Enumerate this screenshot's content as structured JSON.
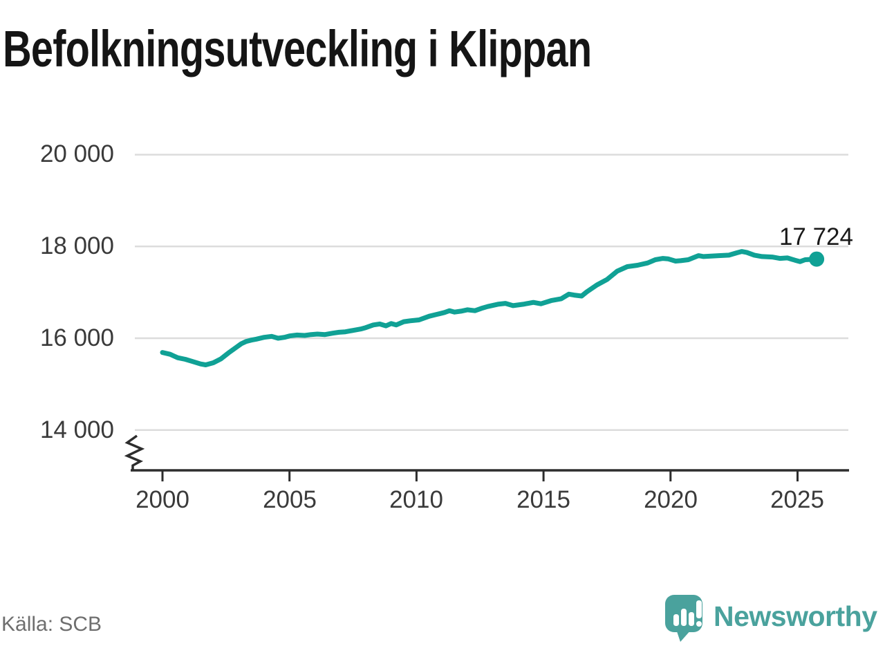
{
  "header": {
    "title": "Befolkningsutveckling i Klippan"
  },
  "footer": {
    "source": "Källa: SCB",
    "logo_text": "Newsworthy"
  },
  "colors": {
    "line": "#10a195",
    "marker": "#10a195",
    "grid": "#dcdcdc",
    "axis": "#2d2d2d",
    "tick_label": "#3a3a3a",
    "title": "#151515",
    "annotation": "#1a1a1a",
    "source": "#6e6e6e",
    "logo": "#4aa29d"
  },
  "chart_data": {
    "type": "line",
    "title": "Befolkningsutveckling i Klippan",
    "xlabel": "",
    "ylabel": "",
    "x_range_years": [
      2000,
      2025.75
    ],
    "ylim": [
      13600,
      20400
    ],
    "grid": "horizontal",
    "axis_break_bottom_left": true,
    "x_ticks": [
      {
        "year": 2000,
        "label": "2000"
      },
      {
        "year": 2005,
        "label": "2005"
      },
      {
        "year": 2010,
        "label": "2010"
      },
      {
        "year": 2015,
        "label": "2015"
      },
      {
        "year": 2020,
        "label": "2020"
      },
      {
        "year": 2025,
        "label": "2025"
      }
    ],
    "y_ticks": [
      {
        "value": 20000,
        "label": "20 000"
      },
      {
        "value": 18000,
        "label": "18 000"
      },
      {
        "value": 16000,
        "label": "16 000"
      },
      {
        "value": 14000,
        "label": "14 000"
      }
    ],
    "annotation": {
      "text": "17 724",
      "value": 17724,
      "year": 2025.75
    },
    "series": [
      {
        "name": "population",
        "points": [
          [
            2000.0,
            15690
          ],
          [
            2000.3,
            15650
          ],
          [
            2000.6,
            15575
          ],
          [
            2000.9,
            15540
          ],
          [
            2001.2,
            15490
          ],
          [
            2001.5,
            15440
          ],
          [
            2001.7,
            15420
          ],
          [
            2002.0,
            15465
          ],
          [
            2002.3,
            15550
          ],
          [
            2002.6,
            15680
          ],
          [
            2002.9,
            15800
          ],
          [
            2003.1,
            15880
          ],
          [
            2003.3,
            15930
          ],
          [
            2003.5,
            15960
          ],
          [
            2003.7,
            15980
          ],
          [
            2004.0,
            16020
          ],
          [
            2004.3,
            16040
          ],
          [
            2004.55,
            16000
          ],
          [
            2004.8,
            16020
          ],
          [
            2005.0,
            16050
          ],
          [
            2005.3,
            16070
          ],
          [
            2005.6,
            16060
          ],
          [
            2005.85,
            16080
          ],
          [
            2006.1,
            16090
          ],
          [
            2006.4,
            16080
          ],
          [
            2006.7,
            16110
          ],
          [
            2006.95,
            16130
          ],
          [
            2007.2,
            16140
          ],
          [
            2007.5,
            16170
          ],
          [
            2007.8,
            16200
          ],
          [
            2008.0,
            16230
          ],
          [
            2008.3,
            16290
          ],
          [
            2008.55,
            16310
          ],
          [
            2008.8,
            16270
          ],
          [
            2009.0,
            16320
          ],
          [
            2009.2,
            16290
          ],
          [
            2009.5,
            16360
          ],
          [
            2009.75,
            16380
          ],
          [
            2010.1,
            16400
          ],
          [
            2010.5,
            16480
          ],
          [
            2010.8,
            16520
          ],
          [
            2011.1,
            16560
          ],
          [
            2011.3,
            16600
          ],
          [
            2011.5,
            16570
          ],
          [
            2011.75,
            16590
          ],
          [
            2012.0,
            16620
          ],
          [
            2012.3,
            16600
          ],
          [
            2012.55,
            16650
          ],
          [
            2012.8,
            16690
          ],
          [
            2013.2,
            16740
          ],
          [
            2013.5,
            16760
          ],
          [
            2013.8,
            16710
          ],
          [
            2014.2,
            16740
          ],
          [
            2014.6,
            16780
          ],
          [
            2014.9,
            16750
          ],
          [
            2015.3,
            16820
          ],
          [
            2015.7,
            16860
          ],
          [
            2016.0,
            16960
          ],
          [
            2016.2,
            16940
          ],
          [
            2016.5,
            16920
          ],
          [
            2016.7,
            17010
          ],
          [
            2017.1,
            17160
          ],
          [
            2017.5,
            17280
          ],
          [
            2017.9,
            17460
          ],
          [
            2018.3,
            17560
          ],
          [
            2018.7,
            17590
          ],
          [
            2019.1,
            17640
          ],
          [
            2019.4,
            17710
          ],
          [
            2019.7,
            17740
          ],
          [
            2019.9,
            17730
          ],
          [
            2020.2,
            17680
          ],
          [
            2020.4,
            17690
          ],
          [
            2020.7,
            17710
          ],
          [
            2021.1,
            17800
          ],
          [
            2021.3,
            17780
          ],
          [
            2021.6,
            17790
          ],
          [
            2021.9,
            17800
          ],
          [
            2022.3,
            17810
          ],
          [
            2022.6,
            17860
          ],
          [
            2022.8,
            17890
          ],
          [
            2023.0,
            17870
          ],
          [
            2023.3,
            17810
          ],
          [
            2023.6,
            17780
          ],
          [
            2024.0,
            17770
          ],
          [
            2024.3,
            17740
          ],
          [
            2024.6,
            17750
          ],
          [
            2024.9,
            17700
          ],
          [
            2025.1,
            17670
          ],
          [
            2025.3,
            17710
          ],
          [
            2025.75,
            17724
          ]
        ]
      }
    ]
  }
}
